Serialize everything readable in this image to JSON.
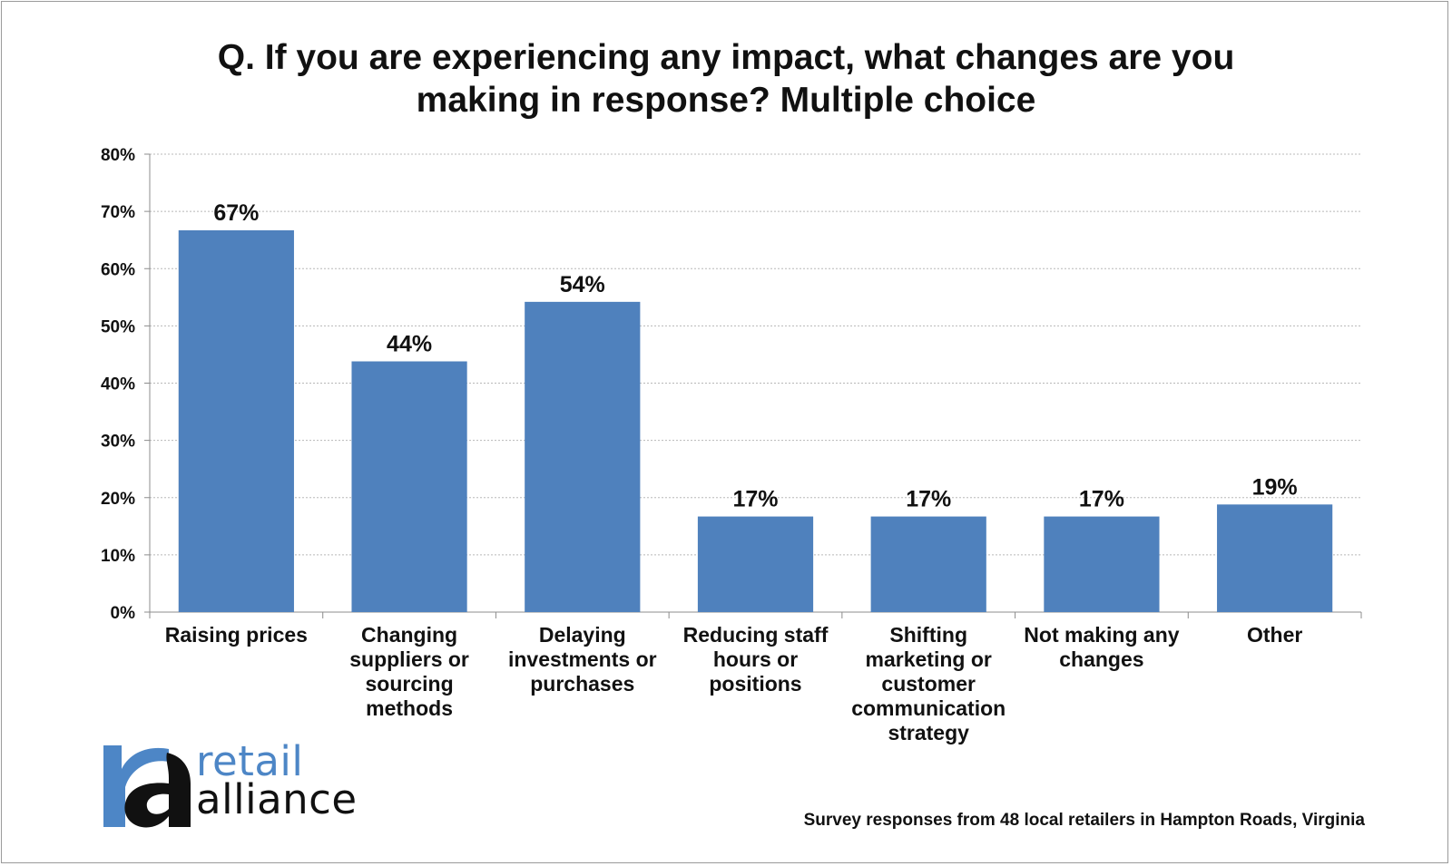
{
  "title_lines": [
    "Q. If you are experiencing any impact, what changes are you",
    "making in response? Multiple choice"
  ],
  "footer": "Survey responses from 48 local retailers in Hampton Roads, Virginia",
  "logo": {
    "word1": "retail",
    "word2": "alliance",
    "color_blue": "#4d86c6",
    "color_dark": "#111111"
  },
  "colors": {
    "bar": "#4f81bd",
    "grid": "#b8b8b8",
    "axis": "#8c8c8c"
  },
  "chart_data": {
    "type": "bar",
    "title": "Q. If you are experiencing any impact, what changes are you making in response? Multiple choice",
    "categories": [
      "Raising prices",
      "Changing suppliers or sourcing methods",
      "Delaying investments or purchases",
      "Reducing staff hours or positions",
      "Shifting marketing or customer communication strategy",
      "Not making any changes",
      "Other"
    ],
    "category_lines": [
      [
        "Raising prices"
      ],
      [
        "Changing",
        "suppliers or",
        "sourcing",
        "methods"
      ],
      [
        "Delaying",
        "investments or",
        "purchases"
      ],
      [
        "Reducing staff",
        "hours or",
        "positions"
      ],
      [
        "Shifting",
        "marketing or",
        "customer",
        "communication",
        "strategy"
      ],
      [
        "Not making any",
        "changes"
      ],
      [
        "Other"
      ]
    ],
    "values": [
      66.7,
      43.8,
      54.2,
      16.7,
      16.7,
      16.7,
      18.8
    ],
    "value_labels": [
      "67%",
      "44%",
      "54%",
      "17%",
      "17%",
      "17%",
      "19%"
    ],
    "ylim": [
      0,
      80
    ],
    "yticks": [
      0,
      10,
      20,
      30,
      40,
      50,
      60,
      70,
      80
    ],
    "ytick_labels": [
      "0%",
      "10%",
      "20%",
      "30%",
      "40%",
      "50%",
      "60%",
      "70%",
      "80%"
    ],
    "xlabel": "",
    "ylabel": "",
    "grid": true,
    "legend": "none"
  }
}
